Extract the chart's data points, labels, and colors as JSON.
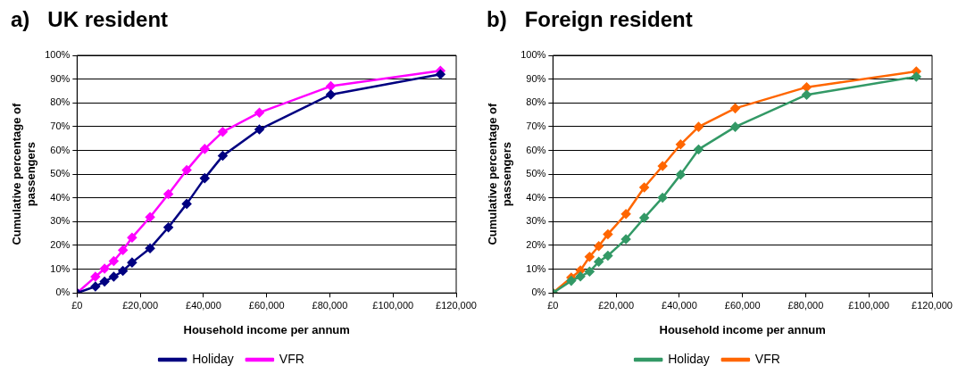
{
  "chart_data": [
    {
      "type": "line",
      "title": "a)   UK resident",
      "xlabel": "Household income per annum",
      "ylabel": "Cumulative percentage of passengers",
      "x": [
        0,
        5800,
        8700,
        11600,
        14500,
        17400,
        23100,
        28900,
        34700,
        40400,
        46100,
        57700,
        80300,
        115000
      ],
      "series": [
        {
          "name": "Holiday",
          "color": "#000080",
          "values": [
            0,
            2.7,
            4.8,
            6.8,
            9.3,
            12.8,
            18.8,
            27.6,
            37.5,
            48.3,
            57.7,
            68.8,
            83.5,
            92
          ]
        },
        {
          "name": "VFR",
          "color": "#ff00ff",
          "values": [
            0,
            6.8,
            10.2,
            13.4,
            18,
            23.3,
            31.9,
            41.6,
            51.7,
            60.6,
            67.8,
            75.9,
            87,
            93.5
          ]
        }
      ],
      "xlim": [
        0,
        120000
      ],
      "xticks": [
        {
          "value": 0,
          "label": "£0"
        },
        {
          "value": 20000,
          "label": "£20,000"
        },
        {
          "value": 40000,
          "label": "£40,000"
        },
        {
          "value": 60000,
          "label": "£60,000"
        },
        {
          "value": 80000,
          "label": "£80,000"
        },
        {
          "value": 100000,
          "label": "£100,000"
        },
        {
          "value": 120000,
          "label": "£120,000"
        }
      ],
      "ylim": [
        0,
        100
      ],
      "yticks": [
        {
          "value": 0,
          "label": "0%"
        },
        {
          "value": 10,
          "label": "10%"
        },
        {
          "value": 20,
          "label": "20%"
        },
        {
          "value": 30,
          "label": "30%"
        },
        {
          "value": 40,
          "label": "40%"
        },
        {
          "value": 50,
          "label": "50%"
        },
        {
          "value": 60,
          "label": "60%"
        },
        {
          "value": 70,
          "label": "70%"
        },
        {
          "value": 80,
          "label": "80%"
        },
        {
          "value": 90,
          "label": "90%"
        },
        {
          "value": 100,
          "label": "100%"
        }
      ],
      "grid": "y",
      "legend": "bottom",
      "marker": "diamond",
      "line_style": "solid"
    },
    {
      "type": "line",
      "title": "b)   Foreign resident",
      "xlabel": "Household income per annum",
      "ylabel": "Cumulative percentage of passengers",
      "x": [
        0,
        5800,
        8700,
        11600,
        14500,
        17400,
        23100,
        28900,
        34700,
        40400,
        46100,
        57700,
        80300,
        115000
      ],
      "series": [
        {
          "name": "Holiday",
          "color": "#339966",
          "values": [
            0,
            5.1,
            6.9,
            9,
            13.1,
            15.7,
            22.6,
            31.6,
            40.1,
            49.8,
            60.4,
            69.9,
            83.4,
            91
          ]
        },
        {
          "name": "VFR",
          "color": "#ff6600",
          "values": [
            0,
            6.5,
            9.5,
            15.2,
            19.7,
            24.7,
            33.2,
            44.4,
            53.4,
            62.5,
            69.9,
            77.7,
            86.6,
            93.2
          ]
        }
      ],
      "xlim": [
        0,
        120000
      ],
      "xticks": [
        {
          "value": 0,
          "label": "£0"
        },
        {
          "value": 20000,
          "label": "£20,000"
        },
        {
          "value": 40000,
          "label": "£40,000"
        },
        {
          "value": 60000,
          "label": "£60,000"
        },
        {
          "value": 80000,
          "label": "£80,000"
        },
        {
          "value": 100000,
          "label": "£100,000"
        },
        {
          "value": 120000,
          "label": "£120,000"
        }
      ],
      "ylim": [
        0,
        100
      ],
      "yticks": [
        {
          "value": 0,
          "label": "0%"
        },
        {
          "value": 10,
          "label": "10%"
        },
        {
          "value": 20,
          "label": "20%"
        },
        {
          "value": 30,
          "label": "30%"
        },
        {
          "value": 40,
          "label": "40%"
        },
        {
          "value": 50,
          "label": "50%"
        },
        {
          "value": 60,
          "label": "60%"
        },
        {
          "value": 70,
          "label": "70%"
        },
        {
          "value": 80,
          "label": "80%"
        },
        {
          "value": 90,
          "label": "90%"
        },
        {
          "value": 100,
          "label": "100%"
        }
      ],
      "grid": "y",
      "legend": "bottom",
      "marker": "diamond",
      "line_style": "solid"
    }
  ]
}
